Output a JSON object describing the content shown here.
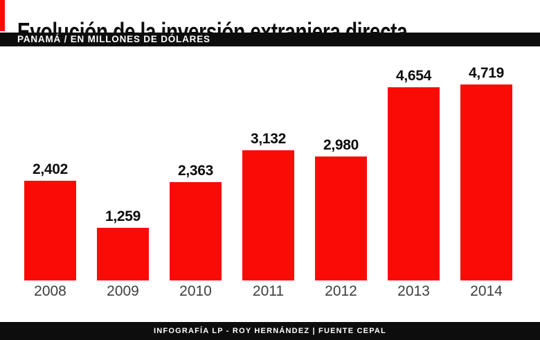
{
  "header": {
    "title": "Evolución de la inversión extranjera directa",
    "subtitle": "PANAMÁ / EN MILLONES DE DÓLARES"
  },
  "footer": {
    "credit": "INFOGRAFÍA LP - ROY HERNÁNDEZ | FUENTE CEPAL"
  },
  "colors": {
    "bar": "#fb0b06",
    "accent": "#fb0b06",
    "band": "#0d0d0d",
    "value_label": "#0c0c0c",
    "year_label": "#3e3e3e"
  },
  "chart_data": {
    "type": "bar",
    "title": "Evolución de la inversión extranjera directa",
    "subtitle": "Panamá / En millones de dólares",
    "categories": [
      "2008",
      "2009",
      "2010",
      "2011",
      "2012",
      "2013",
      "2014"
    ],
    "values": [
      2402,
      1259,
      2363,
      3132,
      2980,
      4654,
      4719
    ],
    "value_labels": [
      "2,402",
      "1,259",
      "2,363",
      "3,132",
      "2,980",
      "4,654",
      "4,719"
    ],
    "xlabel": "",
    "ylabel": "En millones de dólares",
    "ylim": [
      0,
      4719
    ],
    "grid": false,
    "legend": null,
    "bar_color": "#fb0b06",
    "source": "CEPAL"
  }
}
